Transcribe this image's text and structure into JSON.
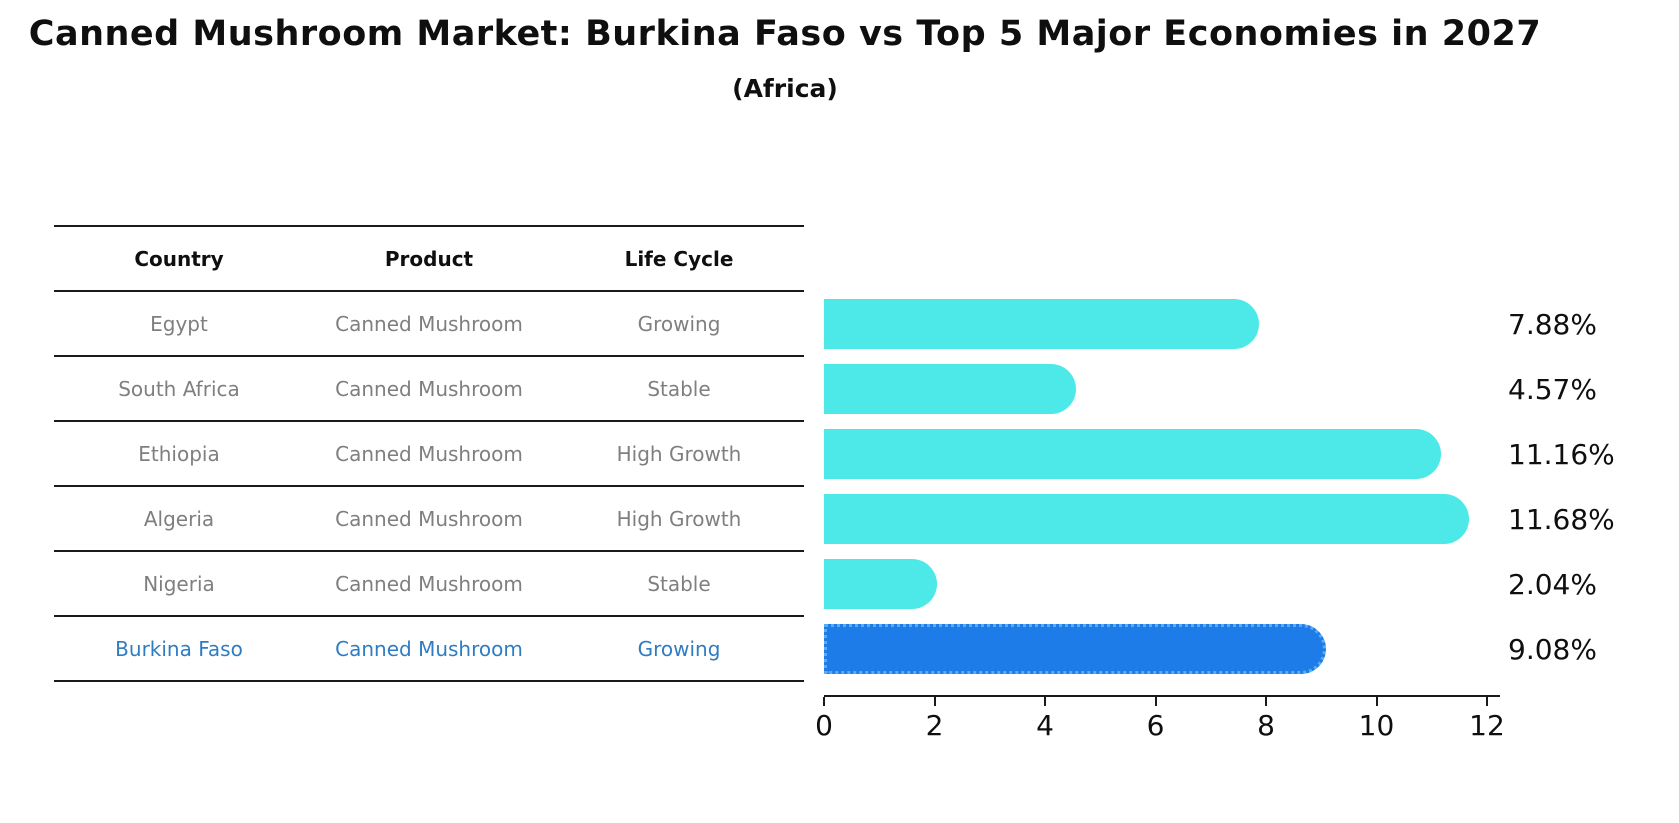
{
  "title": "Canned Mushroom Market: Burkina Faso vs Top 5 Major Economies in 2027",
  "subtitle": "(Africa)",
  "table": {
    "headers": [
      "Country",
      "Product",
      "Life Cycle"
    ],
    "rows": [
      {
        "country": "Egypt",
        "product": "Canned Mushroom",
        "life_cycle": "Growing",
        "highlight": false
      },
      {
        "country": "South Africa",
        "product": "Canned Mushroom",
        "life_cycle": "Stable",
        "highlight": false
      },
      {
        "country": "Ethiopia",
        "product": "Canned Mushroom",
        "life_cycle": "High Growth",
        "highlight": false
      },
      {
        "country": "Algeria",
        "product": "Canned Mushroom",
        "life_cycle": "High Growth",
        "highlight": false
      },
      {
        "country": "Nigeria",
        "product": "Canned Mushroom",
        "life_cycle": "Stable",
        "highlight": false
      },
      {
        "country": "Burkina Faso",
        "product": "Canned Mushroom",
        "life_cycle": "Growing",
        "highlight": true
      }
    ]
  },
  "chart_data": {
    "type": "bar",
    "orientation": "horizontal",
    "categories": [
      "Egypt",
      "South Africa",
      "Ethiopia",
      "Algeria",
      "Nigeria",
      "Burkina Faso"
    ],
    "values": [
      7.88,
      4.57,
      11.16,
      11.68,
      2.04,
      9.08
    ],
    "value_labels": [
      "7.88%",
      "4.57%",
      "11.16%",
      "11.68%",
      "2.04%",
      "9.08%"
    ],
    "xlim": [
      0,
      12
    ],
    "x_ticks": [
      "0",
      "2",
      "4",
      "6",
      "8",
      "10",
      "12"
    ],
    "grid": false,
    "legend": false,
    "highlight_index": 5
  },
  "colors": {
    "bar": "#4de8e8",
    "highlight_bar": "#1e7ce8",
    "highlight_bar_edge": "#5babf2",
    "highlight_text": "#2e7dc4",
    "table_text": "#7f7f7f",
    "axis": "#1a1a1a"
  }
}
